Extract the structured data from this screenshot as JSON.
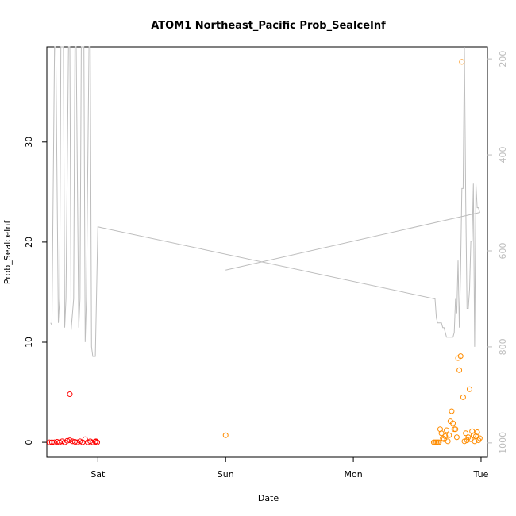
{
  "chart_data": {
    "type": "scatter",
    "title": "ATOM1 Northeast_Pacific Prob_SealceInf",
    "xlabel": "Date",
    "ylabel": "Prob_SealceInf",
    "x_ticks": [
      "Sat",
      "Sun",
      "Mon",
      "Tue"
    ],
    "y_ticks": [
      "0",
      "10",
      "20",
      "30"
    ],
    "right_ticks": [
      "200",
      "400",
      "600",
      "800",
      "1000"
    ],
    "xlim": [
      -0.4,
      3.05
    ],
    "ylim": [
      -1.5,
      39.5
    ],
    "right_ylim": [
      1030,
      175
    ],
    "right_axis_reversed": true,
    "grid": false,
    "colors": {
      "series_early": "#ff0000",
      "series_late": "#ff8c00",
      "depth_line": "#bdbdbd",
      "axis": "#000000",
      "right_axis": "#bdbdbd"
    },
    "series": [
      {
        "axis": "left",
        "marker": "circle-open",
        "color": "#ff0000",
        "x": [
          -0.38,
          -0.36,
          -0.34,
          -0.32,
          -0.3,
          -0.28,
          -0.26,
          -0.24,
          -0.22,
          -0.2,
          -0.18,
          -0.16,
          -0.14,
          -0.12,
          -0.1,
          -0.08,
          -0.06,
          -0.04,
          -0.02,
          -0.015,
          -0.005,
          -0.22
        ],
        "y": [
          0,
          0,
          0,
          0.05,
          0,
          0.1,
          0,
          0.15,
          0.2,
          0.1,
          0.05,
          0,
          0.1,
          0,
          0.3,
          0,
          0.1,
          0,
          0.05,
          0.1,
          0,
          4.8
        ]
      },
      {
        "axis": "left",
        "marker": "circle-open",
        "color": "#ff8c00",
        "x": [
          1.0,
          2.63,
          2.64,
          2.65,
          2.66,
          2.67,
          2.68,
          2.69,
          2.7,
          2.71,
          2.72,
          2.73,
          2.74,
          2.75,
          2.76,
          2.77,
          2.78,
          2.79,
          2.8,
          2.81,
          2.82,
          2.83,
          2.84,
          2.85,
          2.86,
          2.87,
          2.88,
          2.89,
          2.9,
          2.91,
          2.92,
          2.93,
          2.94,
          2.95,
          2.96,
          2.97,
          2.98,
          2.99
        ],
        "y": [
          0.7,
          0,
          0,
          0,
          0,
          0,
          1.3,
          0.9,
          0.4,
          0.3,
          0.6,
          1.2,
          0.1,
          0.7,
          2.1,
          3.1,
          1.9,
          1.3,
          1.3,
          0.5,
          8.4,
          7.2,
          8.6,
          38,
          4.5,
          0.1,
          0.9,
          0.2,
          0.5,
          5.3,
          0.3,
          1.1,
          0.7,
          0.1,
          0.6,
          1.0,
          0.2,
          0.4
        ]
      },
      {
        "axis": "right",
        "type": "line",
        "color": "#bdbdbd",
        "x": [
          -0.37,
          -0.36,
          -0.34,
          -0.33,
          -0.31,
          -0.3,
          -0.29,
          -0.27,
          -0.26,
          -0.25,
          -0.23,
          -0.22,
          -0.21,
          -0.19,
          -0.18,
          -0.17,
          -0.15,
          -0.14,
          -0.13,
          -0.11,
          -0.1,
          -0.09,
          -0.07,
          -0.06,
          -0.05,
          -0.04,
          -0.02,
          0.0,
          2.64,
          2.65,
          2.66,
          2.67,
          2.68,
          2.69,
          2.7,
          2.71,
          2.72,
          2.73,
          2.74,
          2.75,
          2.76,
          2.77,
          2.78,
          2.79,
          2.8,
          2.81,
          2.82,
          2.83,
          2.84,
          2.85,
          2.86,
          2.87,
          2.88,
          2.89,
          2.9,
          2.91,
          2.92,
          2.93,
          2.94,
          2.95,
          2.96,
          2.97,
          2.98,
          2.99,
          1.0
        ],
        "y": [
          750,
          755,
          175,
          175,
          750,
          700,
          175,
          175,
          760,
          700,
          175,
          175,
          765,
          700,
          175,
          175,
          760,
          700,
          175,
          175,
          790,
          700,
          175,
          175,
          800,
          820,
          820,
          550,
          700,
          740,
          750,
          750,
          750,
          750,
          760,
          760,
          770,
          780,
          780,
          780,
          780,
          780,
          780,
          770,
          700,
          730,
          620,
          760,
          640,
          470,
          470,
          175,
          500,
          720,
          720,
          680,
          580,
          580,
          460,
          800,
          460,
          510,
          510,
          520,
          640
        ]
      }
    ]
  }
}
